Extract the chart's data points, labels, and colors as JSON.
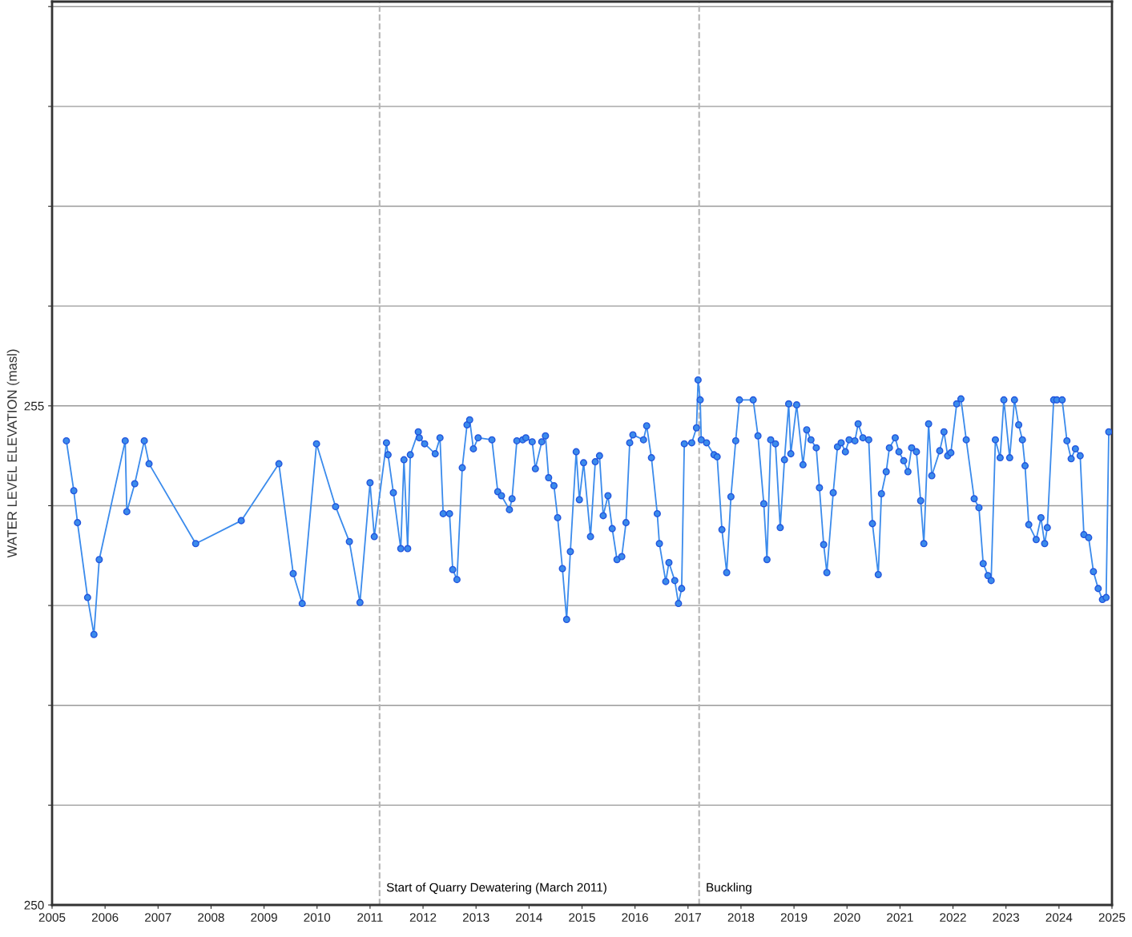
{
  "chart_data": {
    "type": "line",
    "ylabel": "WATER LEVEL ELEVATION (masl)",
    "xlim": [
      2005,
      2025
    ],
    "xticks": [
      2005,
      2006,
      2007,
      2008,
      2009,
      2010,
      2011,
      2012,
      2013,
      2014,
      2015,
      2016,
      2017,
      2018,
      2019,
      2020,
      2021,
      2022,
      2023,
      2024,
      2025
    ],
    "ylim": [
      250,
      259.05
    ],
    "yticks": [
      250,
      {
        "value": 251,
        "label": null
      },
      {
        "value": 252,
        "label": null
      },
      {
        "value": 253,
        "label": null
      },
      {
        "value": 254,
        "label": null
      },
      255,
      {
        "value": 256,
        "label": null
      },
      {
        "value": 257,
        "label": null
      },
      {
        "value": 258,
        "label": null
      },
      {
        "value": 259,
        "label": null
      }
    ],
    "grid": "y",
    "marker": "circle",
    "line_style": "solid",
    "ref_lines": [
      {
        "axis": "x",
        "value": 2011.18,
        "label": "Start of Quarry Dewatering (March 2011)",
        "color": "#b4b4b4",
        "line_style": "dashed"
      },
      {
        "axis": "x",
        "value": 2017.21,
        "label": "Buckling",
        "color": "#b4b4b4",
        "line_style": "dashed"
      }
    ],
    "series": [
      {
        "color": "#3b8bec",
        "x": [
          2005.27,
          2005.41,
          2005.48,
          2005.67,
          2005.79,
          2005.89,
          2006.38,
          2006.41,
          2006.56,
          2006.74,
          2006.83,
          2007.71,
          2008.57,
          2009.28,
          2009.55,
          2009.72,
          2009.99,
          2010.35,
          2010.61,
          2010.81,
          2011.0,
          2011.08,
          2011.31,
          2011.34,
          2011.44,
          2011.58,
          2011.64,
          2011.71,
          2011.76,
          2011.91,
          2011.93,
          2012.03,
          2012.23,
          2012.32,
          2012.38,
          2012.5,
          2012.56,
          2012.64,
          2012.74,
          2012.83,
          2012.88,
          2012.95,
          2013.04,
          2013.3,
          2013.41,
          2013.48,
          2013.63,
          2013.68,
          2013.77,
          2013.88,
          2013.94,
          2014.06,
          2014.12,
          2014.24,
          2014.31,
          2014.37,
          2014.47,
          2014.54,
          2014.63,
          2014.71,
          2014.78,
          2014.89,
          2014.95,
          2015.03,
          2015.16,
          2015.25,
          2015.33,
          2015.4,
          2015.49,
          2015.57,
          2015.66,
          2015.75,
          2015.83,
          2015.9,
          2015.96,
          2016.16,
          2016.22,
          2016.31,
          2016.42,
          2016.46,
          2016.58,
          2016.64,
          2016.75,
          2016.82,
          2016.88,
          2016.93,
          2017.07,
          2017.16,
          2017.19,
          2017.23,
          2017.25,
          2017.35,
          2017.49,
          2017.55,
          2017.64,
          2017.73,
          2017.81,
          2017.9,
          2017.97,
          2018.23,
          2018.32,
          2018.43,
          2018.49,
          2018.56,
          2018.65,
          2018.74,
          2018.82,
          2018.9,
          2018.94,
          2019.05,
          2019.17,
          2019.24,
          2019.32,
          2019.42,
          2019.48,
          2019.56,
          2019.62,
          2019.74,
          2019.82,
          2019.89,
          2019.97,
          2020.04,
          2020.15,
          2020.21,
          2020.3,
          2020.41,
          2020.48,
          2020.59,
          2020.65,
          2020.74,
          2020.8,
          2020.91,
          2020.98,
          2021.07,
          2021.15,
          2021.22,
          2021.31,
          2021.39,
          2021.45,
          2021.54,
          2021.6,
          2021.75,
          2021.83,
          2021.9,
          2021.96,
          2022.07,
          2022.15,
          2022.25,
          2022.4,
          2022.49,
          2022.57,
          2022.66,
          2022.72,
          2022.8,
          2022.89,
          2022.96,
          2023.07,
          2023.16,
          2023.24,
          2023.31,
          2023.36,
          2023.43,
          2023.57,
          2023.66,
          2023.73,
          2023.78,
          2023.9,
          2023.96,
          2024.06,
          2024.15,
          2024.23,
          2024.31,
          2024.4,
          2024.47,
          2024.56,
          2024.65,
          2024.74,
          2024.82,
          2024.89,
          2024.94
        ],
        "values": [
          254.65,
          254.15,
          253.83,
          253.08,
          252.71,
          253.46,
          254.65,
          253.94,
          254.22,
          254.65,
          254.42,
          253.62,
          253.85,
          254.42,
          253.32,
          253.02,
          254.62,
          253.99,
          253.64,
          253.03,
          254.23,
          253.69,
          254.63,
          254.51,
          254.13,
          253.57,
          254.46,
          253.57,
          254.51,
          254.74,
          254.68,
          254.62,
          254.52,
          254.68,
          253.92,
          253.92,
          253.36,
          253.26,
          254.38,
          254.81,
          254.86,
          254.57,
          254.68,
          254.66,
          254.14,
          254.1,
          253.96,
          254.07,
          254.65,
          254.66,
          254.68,
          254.64,
          254.37,
          254.64,
          254.7,
          254.28,
          254.2,
          253.88,
          253.37,
          252.86,
          253.54,
          254.54,
          254.06,
          254.43,
          253.69,
          254.44,
          254.5,
          253.9,
          254.1,
          253.77,
          253.46,
          253.49,
          253.83,
          254.63,
          254.71,
          254.66,
          254.8,
          254.48,
          253.92,
          253.62,
          253.24,
          253.43,
          253.25,
          253.02,
          253.17,
          254.62,
          254.63,
          254.78,
          255.26,
          255.06,
          254.66,
          254.63,
          254.51,
          254.49,
          253.76,
          253.33,
          254.09,
          254.65,
          255.06,
          255.06,
          254.7,
          254.02,
          253.46,
          254.66,
          254.62,
          253.78,
          254.46,
          255.02,
          254.52,
          255.01,
          254.41,
          254.76,
          254.66,
          254.58,
          254.18,
          253.61,
          253.33,
          254.13,
          254.59,
          254.63,
          254.54,
          254.66,
          254.65,
          254.82,
          254.68,
          254.66,
          253.82,
          253.31,
          254.12,
          254.34,
          254.58,
          254.68,
          254.54,
          254.45,
          254.34,
          254.58,
          254.54,
          254.05,
          253.62,
          254.82,
          254.3,
          254.55,
          254.74,
          254.5,
          254.53,
          255.02,
          255.07,
          254.66,
          254.07,
          253.98,
          253.42,
          253.3,
          253.25,
          254.66,
          254.48,
          255.06,
          254.48,
          255.06,
          254.81,
          254.66,
          254.4,
          253.81,
          253.66,
          253.88,
          253.62,
          253.78,
          255.06,
          255.06,
          255.06,
          254.65,
          254.47,
          254.57,
          254.5,
          253.71,
          253.68,
          253.34,
          253.17,
          253.06,
          253.08,
          254.74
        ]
      }
    ]
  }
}
